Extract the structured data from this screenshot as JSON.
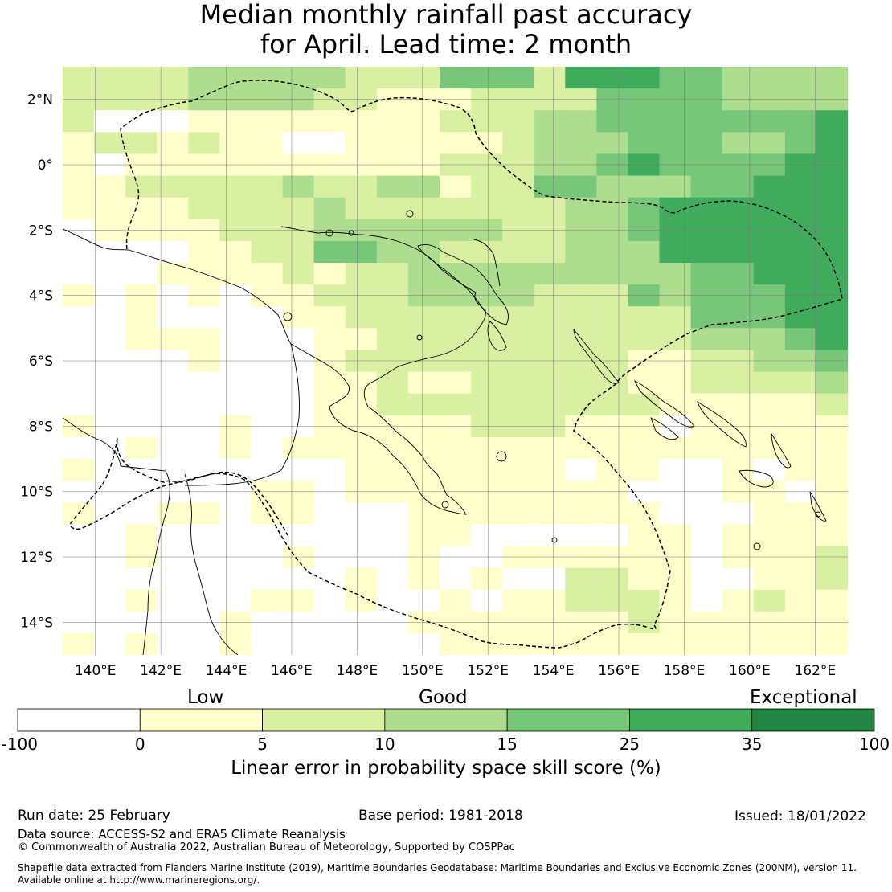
{
  "title": {
    "line1": "Median monthly rainfall past accuracy",
    "line2": "for April. Lead time: 2 month"
  },
  "map": {
    "lon_ticks": [
      "140°E",
      "142°E",
      "144°E",
      "146°E",
      "148°E",
      "150°E",
      "152°E",
      "154°E",
      "156°E",
      "158°E",
      "160°E",
      "162°E"
    ],
    "lat_ticks": [
      "2°N",
      "0°",
      "2°S",
      "4°S",
      "6°S",
      "8°S",
      "10°S",
      "12°S",
      "14°S"
    ],
    "lon_range": [
      139,
      163
    ],
    "lat_range": [
      -15,
      3
    ],
    "grid": true,
    "boundary_style": "dashed",
    "cell_categories": [
      "2222333332224442555443333",
      "2222333322111222244443333",
      "2000111111112223344444445",
      "1221211001111123334443345",
      "1011111111112223345444455",
      "1122222322331224433344555",
      "1111222232222222334555555",
      "0111122233333322334555555",
      "0000112244332222333555555",
      "0001111212233333333344555",
      "1010101122233332224344455",
      "0010000112222222222244455",
      "0011100011222222222233345",
      "0000100012222222221122334",
      "0000000011211222221122223",
      "0000000011222222222111112",
      "1000010011111222111011111",
      "0010010111111111111111111",
      "1000000001111111011001011",
      "0000001101111111110001101",
      "1001101100011111111000111",
      "0010000000011000001101111",
      "0010000100010011111101112",
      "0000000001010100221100112",
      "0010001101001011222101211",
      "0000010000011111112111111",
      "1010010000001111111111111"
    ]
  },
  "colorbar": {
    "top_labels": {
      "low": "Low",
      "good": "Good",
      "exceptional": "Exceptional"
    },
    "ticks": [
      "-100",
      "0",
      "5",
      "10",
      "15",
      "25",
      "35",
      "100"
    ],
    "colors": [
      "#ffffff",
      "#ffffcc",
      "#d9f0a3",
      "#addd8e",
      "#78c679",
      "#41ab5d",
      "#238443"
    ],
    "title": "Linear error in probability space skill score (%)"
  },
  "footer": {
    "run_date": "Run date: 25 February",
    "base_period": "Base period: 1981-2018",
    "issued": "Issued: 18/01/2022",
    "data_source": "Data source: ACCESS-S2 and ERA5 Climate Reanalysis",
    "copyright": "© Commonwealth of Australia 2022, Australian Bureau of Meteorology, Supported by COSPPac",
    "shapefile_line1": "Shapefile data extracted from Flanders Marine Institute (2019), Maritime Boundaries Geodatabase: Maritime Boundaries and Exclusive Economic Zones (200NM), version 11.",
    "shapefile_line2": "Available online at http://www.marineregions.org/."
  }
}
